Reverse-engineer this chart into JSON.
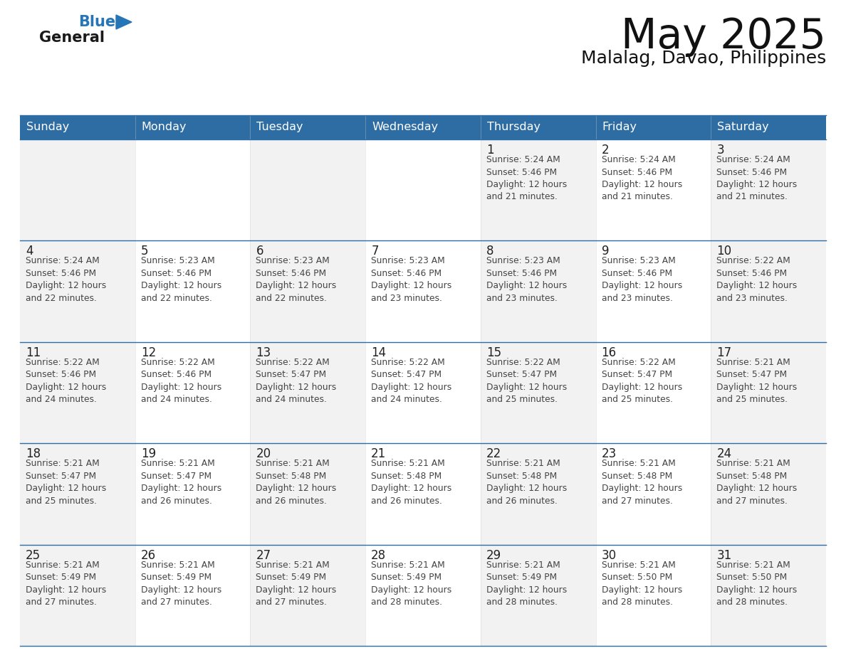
{
  "title": "May 2025",
  "subtitle": "Malalag, Davao, Philippines",
  "header_color": "#2e6da4",
  "header_text_color": "#ffffff",
  "days_of_week": [
    "Sunday",
    "Monday",
    "Tuesday",
    "Wednesday",
    "Thursday",
    "Friday",
    "Saturday"
  ],
  "cell_bg_even": "#f2f2f2",
  "cell_bg_odd": "#ffffff",
  "day_num_color": "#222222",
  "text_color": "#444444",
  "grid_line_color": "#2e6da4",
  "weeks": [
    [
      {
        "day": null,
        "info": null
      },
      {
        "day": null,
        "info": null
      },
      {
        "day": null,
        "info": null
      },
      {
        "day": null,
        "info": null
      },
      {
        "day": 1,
        "info": "Sunrise: 5:24 AM\nSunset: 5:46 PM\nDaylight: 12 hours\nand 21 minutes."
      },
      {
        "day": 2,
        "info": "Sunrise: 5:24 AM\nSunset: 5:46 PM\nDaylight: 12 hours\nand 21 minutes."
      },
      {
        "day": 3,
        "info": "Sunrise: 5:24 AM\nSunset: 5:46 PM\nDaylight: 12 hours\nand 21 minutes."
      }
    ],
    [
      {
        "day": 4,
        "info": "Sunrise: 5:24 AM\nSunset: 5:46 PM\nDaylight: 12 hours\nand 22 minutes."
      },
      {
        "day": 5,
        "info": "Sunrise: 5:23 AM\nSunset: 5:46 PM\nDaylight: 12 hours\nand 22 minutes."
      },
      {
        "day": 6,
        "info": "Sunrise: 5:23 AM\nSunset: 5:46 PM\nDaylight: 12 hours\nand 22 minutes."
      },
      {
        "day": 7,
        "info": "Sunrise: 5:23 AM\nSunset: 5:46 PM\nDaylight: 12 hours\nand 23 minutes."
      },
      {
        "day": 8,
        "info": "Sunrise: 5:23 AM\nSunset: 5:46 PM\nDaylight: 12 hours\nand 23 minutes."
      },
      {
        "day": 9,
        "info": "Sunrise: 5:23 AM\nSunset: 5:46 PM\nDaylight: 12 hours\nand 23 minutes."
      },
      {
        "day": 10,
        "info": "Sunrise: 5:22 AM\nSunset: 5:46 PM\nDaylight: 12 hours\nand 23 minutes."
      }
    ],
    [
      {
        "day": 11,
        "info": "Sunrise: 5:22 AM\nSunset: 5:46 PM\nDaylight: 12 hours\nand 24 minutes."
      },
      {
        "day": 12,
        "info": "Sunrise: 5:22 AM\nSunset: 5:46 PM\nDaylight: 12 hours\nand 24 minutes."
      },
      {
        "day": 13,
        "info": "Sunrise: 5:22 AM\nSunset: 5:47 PM\nDaylight: 12 hours\nand 24 minutes."
      },
      {
        "day": 14,
        "info": "Sunrise: 5:22 AM\nSunset: 5:47 PM\nDaylight: 12 hours\nand 24 minutes."
      },
      {
        "day": 15,
        "info": "Sunrise: 5:22 AM\nSunset: 5:47 PM\nDaylight: 12 hours\nand 25 minutes."
      },
      {
        "day": 16,
        "info": "Sunrise: 5:22 AM\nSunset: 5:47 PM\nDaylight: 12 hours\nand 25 minutes."
      },
      {
        "day": 17,
        "info": "Sunrise: 5:21 AM\nSunset: 5:47 PM\nDaylight: 12 hours\nand 25 minutes."
      }
    ],
    [
      {
        "day": 18,
        "info": "Sunrise: 5:21 AM\nSunset: 5:47 PM\nDaylight: 12 hours\nand 25 minutes."
      },
      {
        "day": 19,
        "info": "Sunrise: 5:21 AM\nSunset: 5:47 PM\nDaylight: 12 hours\nand 26 minutes."
      },
      {
        "day": 20,
        "info": "Sunrise: 5:21 AM\nSunset: 5:48 PM\nDaylight: 12 hours\nand 26 minutes."
      },
      {
        "day": 21,
        "info": "Sunrise: 5:21 AM\nSunset: 5:48 PM\nDaylight: 12 hours\nand 26 minutes."
      },
      {
        "day": 22,
        "info": "Sunrise: 5:21 AM\nSunset: 5:48 PM\nDaylight: 12 hours\nand 26 minutes."
      },
      {
        "day": 23,
        "info": "Sunrise: 5:21 AM\nSunset: 5:48 PM\nDaylight: 12 hours\nand 27 minutes."
      },
      {
        "day": 24,
        "info": "Sunrise: 5:21 AM\nSunset: 5:48 PM\nDaylight: 12 hours\nand 27 minutes."
      }
    ],
    [
      {
        "day": 25,
        "info": "Sunrise: 5:21 AM\nSunset: 5:49 PM\nDaylight: 12 hours\nand 27 minutes."
      },
      {
        "day": 26,
        "info": "Sunrise: 5:21 AM\nSunset: 5:49 PM\nDaylight: 12 hours\nand 27 minutes."
      },
      {
        "day": 27,
        "info": "Sunrise: 5:21 AM\nSunset: 5:49 PM\nDaylight: 12 hours\nand 27 minutes."
      },
      {
        "day": 28,
        "info": "Sunrise: 5:21 AM\nSunset: 5:49 PM\nDaylight: 12 hours\nand 28 minutes."
      },
      {
        "day": 29,
        "info": "Sunrise: 5:21 AM\nSunset: 5:49 PM\nDaylight: 12 hours\nand 28 minutes."
      },
      {
        "day": 30,
        "info": "Sunrise: 5:21 AM\nSunset: 5:50 PM\nDaylight: 12 hours\nand 28 minutes."
      },
      {
        "day": 31,
        "info": "Sunrise: 5:21 AM\nSunset: 5:50 PM\nDaylight: 12 hours\nand 28 minutes."
      }
    ]
  ]
}
